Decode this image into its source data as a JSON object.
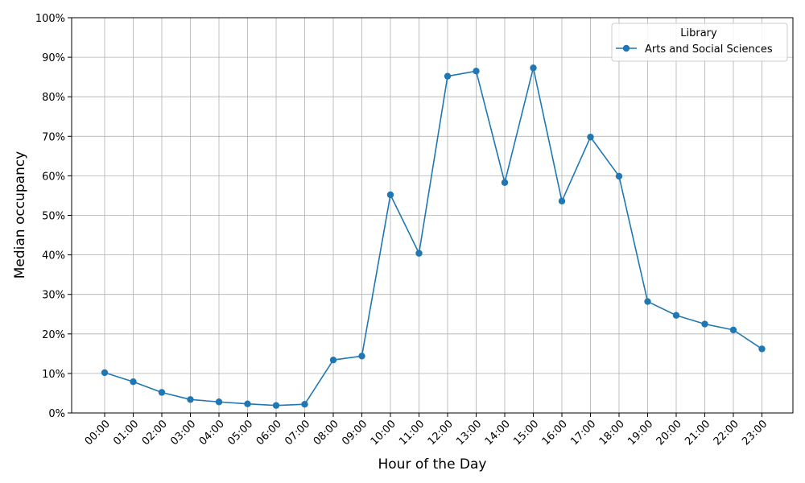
{
  "chart_data": {
    "type": "line",
    "xlabel": "Hour of the Day",
    "ylabel": "Median occupancy",
    "x": [
      "00:00",
      "01:00",
      "02:00",
      "03:00",
      "04:00",
      "05:00",
      "06:00",
      "07:00",
      "08:00",
      "09:00",
      "10:00",
      "11:00",
      "12:00",
      "13:00",
      "14:00",
      "15:00",
      "16:00",
      "17:00",
      "18:00",
      "19:00",
      "20:00",
      "21:00",
      "22:00",
      "23:00"
    ],
    "yticks": [
      "0%",
      "10%",
      "20%",
      "30%",
      "40%",
      "50%",
      "60%",
      "70%",
      "80%",
      "90%",
      "100%"
    ],
    "ylim": [
      0,
      1
    ],
    "grid": true,
    "legend": {
      "title": "Library",
      "placement": "top-right"
    },
    "series": [
      {
        "name": "Arts and Social Sciences",
        "color": "#1f77b4",
        "values": [
          0.102,
          0.079,
          0.052,
          0.034,
          0.028,
          0.023,
          0.019,
          0.022,
          0.134,
          0.144,
          0.552,
          0.404,
          0.852,
          0.865,
          0.583,
          0.873,
          0.536,
          0.698,
          0.599,
          0.282,
          0.247,
          0.225,
          0.21,
          0.162
        ]
      }
    ]
  }
}
